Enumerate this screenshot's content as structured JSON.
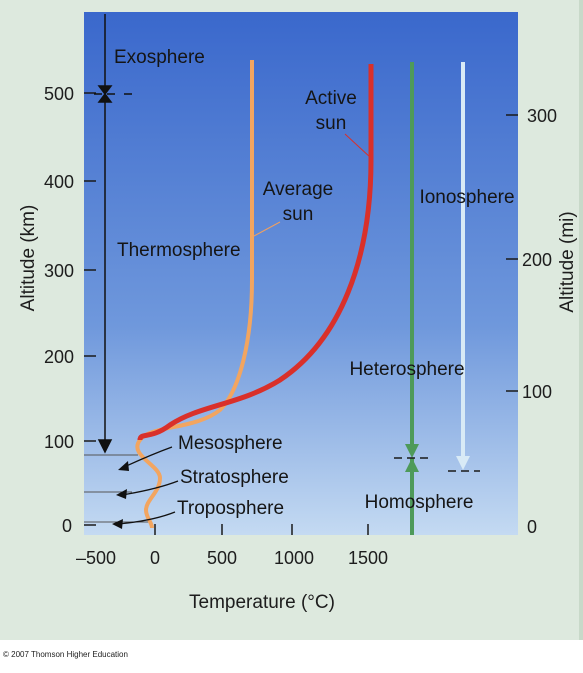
{
  "figure": {
    "left_axis_label": "Altitude (km)",
    "right_axis_label": "Altitude (mi)",
    "x_axis_label": "Temperature (°C)",
    "km_ticks": [
      "0",
      "100",
      "200",
      "300",
      "400",
      "500"
    ],
    "mi_ticks": [
      "0",
      "100",
      "200",
      "300"
    ],
    "temp_ticks": [
      "–500",
      "0",
      "500",
      "1000",
      "1500"
    ],
    "layers": {
      "exosphere": "Exosphere",
      "thermosphere": "Thermosphere",
      "mesosphere": "Mesosphere",
      "stratosphere": "Stratosphere",
      "troposphere": "Troposphere"
    },
    "curves": {
      "active_sun_line1": "Active",
      "active_sun_line2": "sun",
      "average_sun_line1": "Average",
      "average_sun_line2": "sun"
    },
    "regions": {
      "ionosphere": "Ionosphere",
      "heterosphere": "Heterosphere",
      "homosphere": "Homosphere"
    },
    "colors": {
      "sky_top": "#3f6fd0",
      "sky_bottom": "#c2d8f2",
      "active_sun": "#d9302a",
      "average_sun": "#f0a060",
      "heterosphere_arrow": "#4e9a5a",
      "ionosphere_arrow": "#d8eaf6"
    }
  },
  "copyright": "© 2007 Thomson Higher Education"
}
